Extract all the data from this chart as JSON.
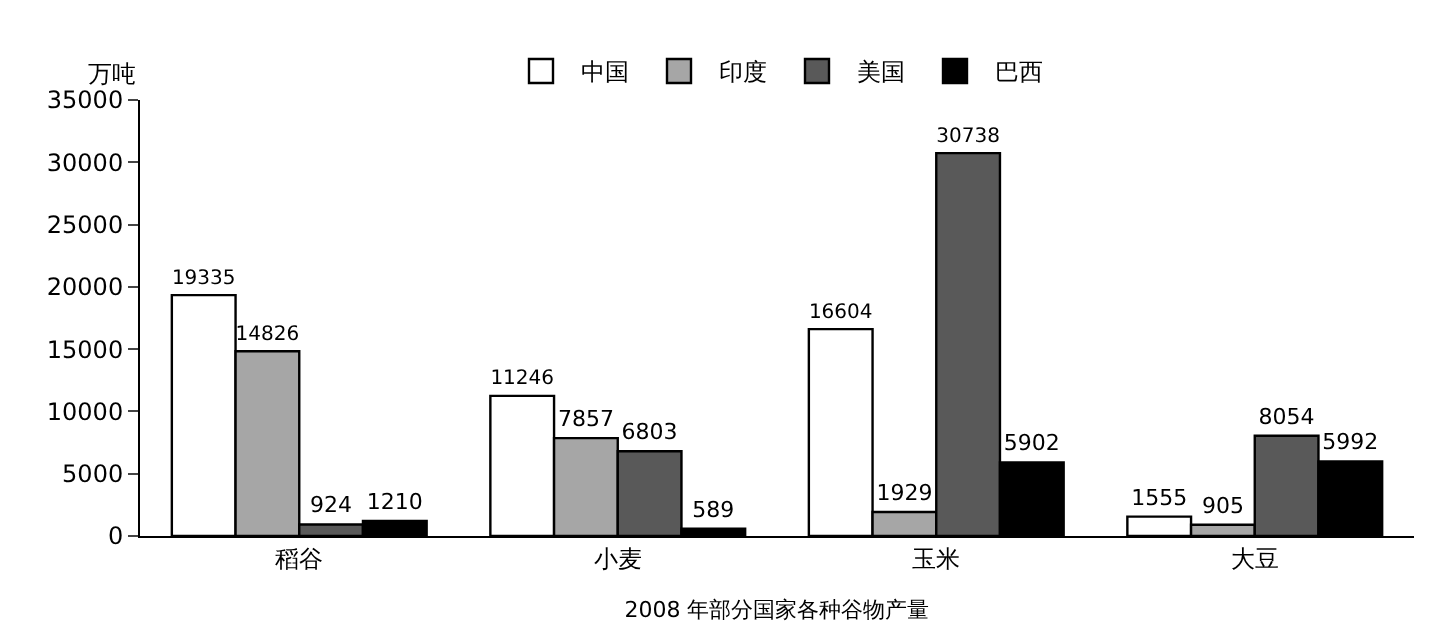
{
  "chart_data": {
    "type": "bar",
    "xlabel": "2008 年部分国家各种谷物产量",
    "ylabel": "万吨",
    "categories": [
      "稻谷",
      "小麦",
      "玉米",
      "大豆"
    ],
    "series": [
      {
        "name": "中国",
        "color": "#ffffff",
        "values": [
          19335,
          11246,
          16604,
          1555
        ]
      },
      {
        "name": "印度",
        "color": "#a6a6a6",
        "values": [
          14826,
          7857,
          1929,
          905
        ]
      },
      {
        "name": "美国",
        "color": "#595959",
        "values": [
          924,
          6803,
          30738,
          8054
        ]
      },
      {
        "name": "巴西",
        "color": "#000000",
        "values": [
          1210,
          589,
          5902,
          5992
        ]
      }
    ],
    "ylim": [
      0,
      35000
    ],
    "yticks": [
      0,
      5000,
      10000,
      15000,
      20000,
      25000,
      30000,
      35000
    ],
    "data_labels": true,
    "legend": "top"
  }
}
